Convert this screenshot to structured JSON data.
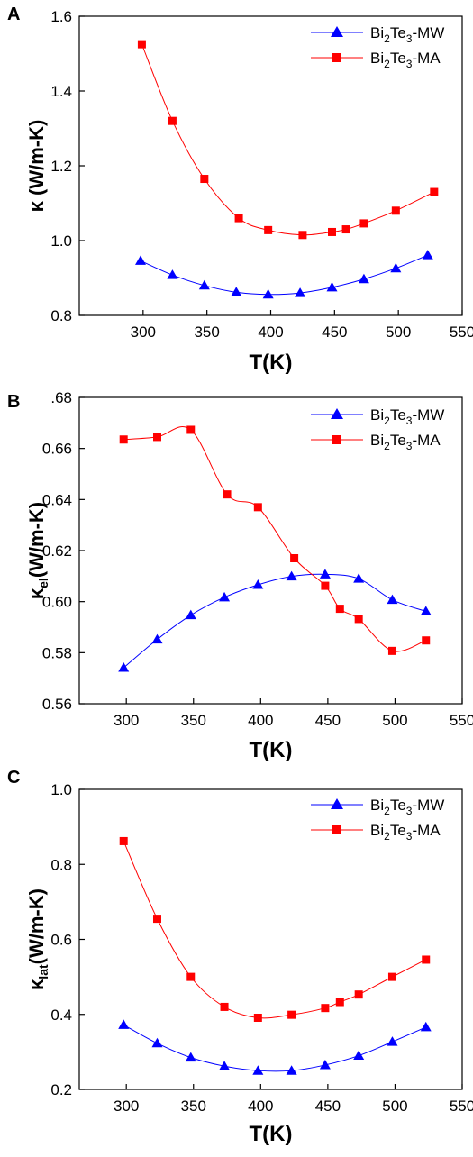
{
  "chart_data": [
    {
      "panel": "A",
      "type": "line",
      "xlabel": "T(K)",
      "ylabel": "κ (W/m-K)",
      "ylabel_main": "κ (W/m-K)",
      "ylabel_sub": "",
      "xlim": [
        250,
        550
      ],
      "ylim": [
        0.8,
        1.6
      ],
      "xticks": [
        300,
        350,
        400,
        450,
        500,
        550
      ],
      "yticks": [
        0.8,
        1.0,
        1.2,
        1.4,
        1.6
      ],
      "ytick_labels": [
        "0.8",
        "1.0",
        "1.2",
        "1.4",
        "1.6"
      ],
      "legend_position": "top-right",
      "series": [
        {
          "name": "Bi2Te3-MW",
          "legend_parts": [
            "Bi",
            "2",
            "Te",
            "3",
            "-MW"
          ],
          "color": "#0000ff",
          "marker": "triangle",
          "x": [
            298,
            323,
            348,
            373,
            398,
            423,
            448,
            473,
            498,
            523
          ],
          "y": [
            0.946,
            0.908,
            0.88,
            0.862,
            0.856,
            0.86,
            0.875,
            0.897,
            0.926,
            0.961
          ]
        },
        {
          "name": "Bi2Te3-MA",
          "legend_parts": [
            "Bi",
            "2",
            "Te",
            "3",
            "-MA"
          ],
          "color": "#ff0000",
          "marker": "square",
          "x": [
            299,
            323,
            348,
            375,
            398,
            425,
            448,
            459,
            473,
            498,
            528
          ],
          "y": [
            1.525,
            1.32,
            1.165,
            1.06,
            1.028,
            1.015,
            1.023,
            1.03,
            1.046,
            1.08,
            1.13
          ]
        }
      ]
    },
    {
      "panel": "B",
      "type": "line",
      "xlabel": "T(K)",
      "ylabel": "κel(W/m-K)",
      "ylabel_main": "κ",
      "ylabel_sub": "el",
      "ylabel_rest": "(W/m-K)",
      "xlim": [
        265,
        550
      ],
      "ylim": [
        0.56,
        0.68
      ],
      "xticks": [
        300,
        350,
        400,
        450,
        500,
        550
      ],
      "yticks": [
        0.56,
        0.58,
        0.6,
        0.62,
        0.64,
        0.66,
        0.68
      ],
      "ytick_labels": [
        "0.56",
        "0.58",
        "0.60",
        "0.62",
        "0.64",
        "0.66",
        ".68"
      ],
      "legend_position": "top-right",
      "series": [
        {
          "name": "Bi2Te3-MW",
          "legend_parts": [
            "Bi",
            "2",
            "Te",
            "3",
            "-MW"
          ],
          "color": "#0000ff",
          "marker": "triangle",
          "x": [
            298,
            323,
            348,
            373,
            398,
            423,
            448,
            473,
            498,
            523
          ],
          "y": [
            0.5741,
            0.5852,
            0.5947,
            0.6017,
            0.6066,
            0.6099,
            0.6107,
            0.609,
            0.6007,
            0.5962
          ]
        },
        {
          "name": "Bi2Te3-MA",
          "legend_parts": [
            "Bi",
            "2",
            "Te",
            "3",
            "-MA"
          ],
          "color": "#ff0000",
          "marker": "square",
          "x": [
            298,
            323,
            348,
            375,
            398,
            425,
            448,
            459,
            473,
            498,
            523
          ],
          "y": [
            0.6635,
            0.6645,
            0.6673,
            0.642,
            0.637,
            0.617,
            0.6062,
            0.5972,
            0.5932,
            0.5807,
            0.5848
          ]
        }
      ]
    },
    {
      "panel": "C",
      "type": "line",
      "xlabel": "T(K)",
      "ylabel": "κlat(W/m-K)",
      "ylabel_main": "κ",
      "ylabel_sub": "lat",
      "ylabel_rest": "(W/m-K)",
      "xlim": [
        265,
        550
      ],
      "ylim": [
        0.2,
        1.0
      ],
      "xticks": [
        300,
        350,
        400,
        450,
        500,
        550
      ],
      "yticks": [
        0.2,
        0.4,
        0.6,
        0.8,
        1.0
      ],
      "ytick_labels": [
        "0.2",
        "0.4",
        "0.6",
        "0.8",
        "1.0"
      ],
      "legend_position": "top-right",
      "series": [
        {
          "name": "Bi2Te3-MW",
          "legend_parts": [
            "Bi",
            "2",
            "Te",
            "3",
            "-MW"
          ],
          "color": "#0000ff",
          "marker": "triangle",
          "x": [
            298,
            323,
            348,
            373,
            398,
            423,
            448,
            473,
            498,
            523
          ],
          "y": [
            0.372,
            0.323,
            0.285,
            0.262,
            0.25,
            0.25,
            0.265,
            0.29,
            0.327,
            0.366
          ]
        },
        {
          "name": "Bi2Te3-MA",
          "legend_parts": [
            "Bi",
            "2",
            "Te",
            "3",
            "-MA"
          ],
          "color": "#ff0000",
          "marker": "square",
          "x": [
            298,
            323,
            348,
            373,
            398,
            423,
            448,
            459,
            473,
            498,
            523
          ],
          "y": [
            0.862,
            0.655,
            0.5,
            0.42,
            0.391,
            0.399,
            0.417,
            0.433,
            0.453,
            0.5,
            0.546
          ]
        }
      ]
    }
  ]
}
